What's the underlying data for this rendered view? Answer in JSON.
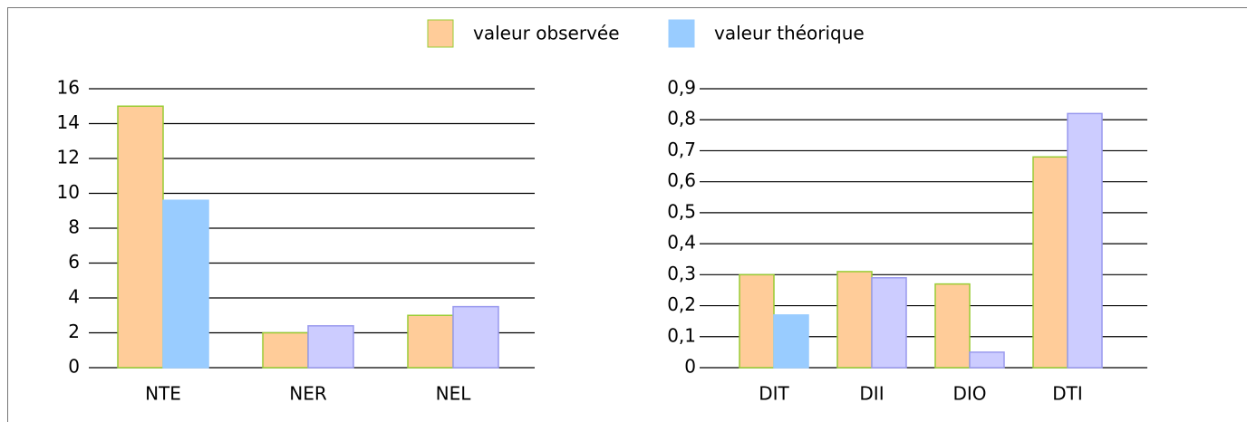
{
  "chart_data": [
    {
      "type": "bar",
      "categories": [
        "NTE",
        "NER",
        "NEL"
      ],
      "series": [
        {
          "name": "valeur observée",
          "color": "#ffcc99",
          "values": [
            15,
            2,
            3
          ]
        },
        {
          "name": "valeur théorique",
          "color": "#99ccff",
          "colors": [
            "#99ccff",
            "#ccccff",
            "#ccccff"
          ],
          "values": [
            9.6,
            2.4,
            3.5
          ]
        }
      ],
      "ylim": [
        0,
        16
      ],
      "yticks": [
        0,
        2,
        4,
        6,
        8,
        10,
        12,
        14,
        16
      ],
      "grid": true,
      "legend": "top"
    },
    {
      "type": "bar",
      "categories": [
        "DIT",
        "DII",
        "DIO",
        "DTI"
      ],
      "series": [
        {
          "name": "valeur observée",
          "color": "#ffcc99",
          "values": [
            0.3,
            0.31,
            0.27,
            0.68
          ]
        },
        {
          "name": "valeur théorique",
          "color": "#99ccff",
          "colors": [
            "#99ccff",
            "#ccccff",
            "#ccccff",
            "#ccccff"
          ],
          "values": [
            0.17,
            0.29,
            0.05,
            0.82
          ]
        }
      ],
      "ylim": [
        0,
        0.9
      ],
      "yticks": [
        {
          "value": 0,
          "label": "0"
        },
        {
          "value": 0.1,
          "label": "0,1"
        },
        {
          "value": 0.2,
          "label": "0,2"
        },
        {
          "value": 0.3,
          "label": "0,3"
        },
        {
          "value": 0.4,
          "label": "0,4"
        },
        {
          "value": 0.5,
          "label": "0,5"
        },
        {
          "value": 0.6,
          "label": "0,6"
        },
        {
          "value": 0.7,
          "label": "0,7"
        },
        {
          "value": 0.8,
          "label": "0,8"
        },
        {
          "value": 0.9,
          "label": "0,9"
        }
      ],
      "grid": true
    }
  ]
}
